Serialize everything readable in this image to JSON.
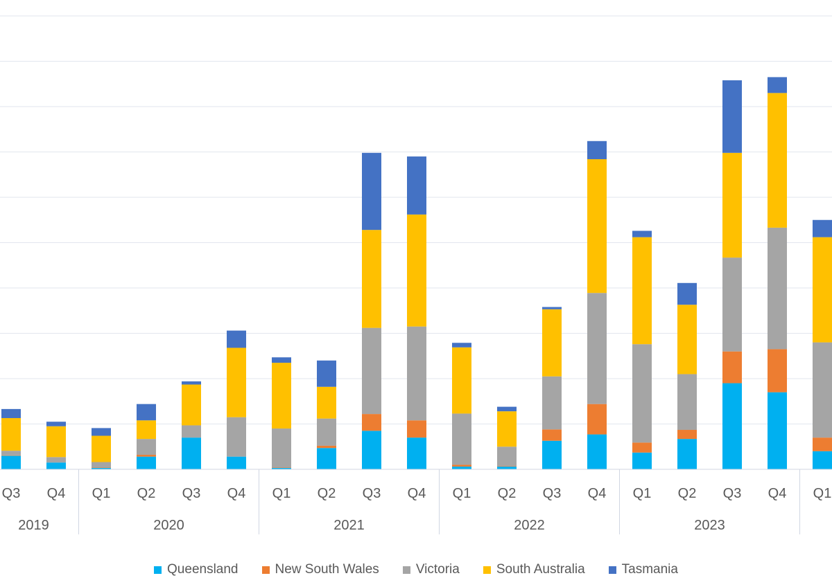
{
  "chart_data": {
    "type": "bar",
    "stacked": true,
    "title": "",
    "xlabel": "",
    "ylabel": "",
    "ylim": [
      0,
      10
    ],
    "grid": true,
    "legend_position": "bottom",
    "categories": [
      {
        "quarter": "Q3",
        "year": "2019"
      },
      {
        "quarter": "Q4",
        "year": "2019"
      },
      {
        "quarter": "Q1",
        "year": "2020"
      },
      {
        "quarter": "Q2",
        "year": "2020"
      },
      {
        "quarter": "Q3",
        "year": "2020"
      },
      {
        "quarter": "Q4",
        "year": "2020"
      },
      {
        "quarter": "Q1",
        "year": "2021"
      },
      {
        "quarter": "Q2",
        "year": "2021"
      },
      {
        "quarter": "Q3",
        "year": "2021"
      },
      {
        "quarter": "Q4",
        "year": "2021"
      },
      {
        "quarter": "Q1",
        "year": "2022"
      },
      {
        "quarter": "Q2",
        "year": "2022"
      },
      {
        "quarter": "Q3",
        "year": "2022"
      },
      {
        "quarter": "Q4",
        "year": "2022"
      },
      {
        "quarter": "Q1",
        "year": "2023"
      },
      {
        "quarter": "Q2",
        "year": "2023"
      },
      {
        "quarter": "Q3",
        "year": "2023"
      },
      {
        "quarter": "Q4",
        "year": "2023"
      },
      {
        "quarter": "Q1",
        "year": ""
      }
    ],
    "year_groups": [
      "2019",
      "2020",
      "2021",
      "2022",
      "2023"
    ],
    "series": [
      {
        "name": "Queensland",
        "color": "#00B0F0",
        "values": [
          0.3,
          0.15,
          0.03,
          0.28,
          0.7,
          0.28,
          0.03,
          0.47,
          0.85,
          0.7,
          0.06,
          0.06,
          0.63,
          0.77,
          0.37,
          0.67,
          1.9,
          1.7,
          0.4
        ]
      },
      {
        "name": "New South Wales",
        "color": "#ED7D31",
        "values": [
          0.01,
          0.0,
          0.01,
          0.04,
          0.0,
          0.0,
          0.01,
          0.05,
          0.37,
          0.38,
          0.04,
          0.01,
          0.25,
          0.67,
          0.22,
          0.2,
          0.7,
          0.95,
          0.3
        ]
      },
      {
        "name": "Victoria",
        "color": "#A5A5A5",
        "values": [
          0.1,
          0.12,
          0.12,
          0.35,
          0.27,
          0.87,
          0.86,
          0.6,
          1.9,
          2.07,
          1.13,
          0.43,
          1.17,
          2.45,
          2.17,
          1.23,
          2.07,
          2.68,
          2.1
        ]
      },
      {
        "name": "South Australia",
        "color": "#FFC000",
        "values": [
          0.72,
          0.68,
          0.58,
          0.41,
          0.9,
          1.53,
          1.45,
          0.7,
          2.16,
          2.47,
          1.46,
          0.78,
          1.48,
          2.95,
          2.36,
          1.53,
          2.31,
          2.97,
          2.32
        ]
      },
      {
        "name": "Tasmania",
        "color": "#4472C4",
        "values": [
          0.2,
          0.1,
          0.17,
          0.36,
          0.07,
          0.38,
          0.12,
          0.58,
          1.7,
          1.28,
          0.1,
          0.1,
          0.05,
          0.4,
          0.14,
          0.48,
          1.6,
          0.35,
          0.38
        ]
      }
    ]
  }
}
